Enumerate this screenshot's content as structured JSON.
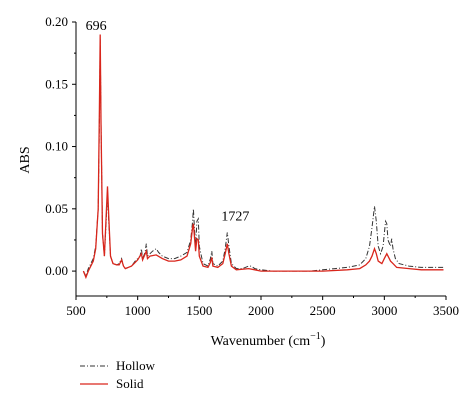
{
  "chart_data": {
    "type": "line",
    "title": "",
    "xlabel": "Wavenumber (cm",
    "xlabel_sup": "−1",
    "xlabel_suffix": ")",
    "ylabel": "ABS",
    "xlim": [
      500,
      3500
    ],
    "ylim": [
      -0.02,
      0.2
    ],
    "x_ticks": [
      500,
      1000,
      1500,
      2000,
      2500,
      3000,
      3500
    ],
    "x_tick_labels": [
      "500",
      "1000",
      "1500",
      "2000",
      "2500",
      "3000",
      "3500"
    ],
    "y_ticks": [
      0.0,
      0.05,
      0.1,
      0.15,
      0.2
    ],
    "y_tick_labels": [
      "0.00",
      "0.05",
      "0.10",
      "0.15",
      "0.20"
    ],
    "grid": false,
    "legend_position": "bottom-left",
    "annotations": [
      {
        "text": "696",
        "x": 696,
        "y": 0.2
      },
      {
        "text": "1727",
        "x": 1727,
        "y": 0.036
      }
    ],
    "series": [
      {
        "name": "Hollow",
        "color": "#333333",
        "dash": "dash-dot",
        "points": [
          [
            560,
            0.0
          ],
          [
            580,
            -0.004
          ],
          [
            600,
            0.002
          ],
          [
            620,
            0.006
          ],
          [
            640,
            0.01
          ],
          [
            660,
            0.02
          ],
          [
            680,
            0.05
          ],
          [
            690,
            0.12
          ],
          [
            696,
            0.186
          ],
          [
            703,
            0.12
          ],
          [
            715,
            0.03
          ],
          [
            730,
            0.012
          ],
          [
            745,
            0.04
          ],
          [
            755,
            0.064
          ],
          [
            765,
            0.04
          ],
          [
            780,
            0.012
          ],
          [
            800,
            0.006
          ],
          [
            830,
            0.005
          ],
          [
            850,
            0.006
          ],
          [
            870,
            0.01
          ],
          [
            885,
            0.004
          ],
          [
            900,
            0.002
          ],
          [
            950,
            0.004
          ],
          [
            980,
            0.008
          ],
          [
            1000,
            0.01
          ],
          [
            1020,
            0.012
          ],
          [
            1030,
            0.018
          ],
          [
            1040,
            0.01
          ],
          [
            1060,
            0.015
          ],
          [
            1070,
            0.022
          ],
          [
            1080,
            0.012
          ],
          [
            1100,
            0.014
          ],
          [
            1120,
            0.016
          ],
          [
            1150,
            0.018
          ],
          [
            1170,
            0.015
          ],
          [
            1200,
            0.012
          ],
          [
            1250,
            0.01
          ],
          [
            1300,
            0.01
          ],
          [
            1350,
            0.012
          ],
          [
            1400,
            0.015
          ],
          [
            1430,
            0.025
          ],
          [
            1445,
            0.04
          ],
          [
            1452,
            0.05
          ],
          [
            1460,
            0.035
          ],
          [
            1470,
            0.02
          ],
          [
            1480,
            0.04
          ],
          [
            1492,
            0.042
          ],
          [
            1500,
            0.02
          ],
          [
            1530,
            0.006
          ],
          [
            1570,
            0.004
          ],
          [
            1590,
            0.01
          ],
          [
            1601,
            0.016
          ],
          [
            1610,
            0.006
          ],
          [
            1650,
            0.004
          ],
          [
            1690,
            0.008
          ],
          [
            1710,
            0.018
          ],
          [
            1727,
            0.031
          ],
          [
            1740,
            0.02
          ],
          [
            1760,
            0.006
          ],
          [
            1800,
            0.002
          ],
          [
            1850,
            0.002
          ],
          [
            1900,
            0.004
          ],
          [
            1920,
            0.004
          ],
          [
            1950,
            0.002
          ],
          [
            2000,
            0.001
          ],
          [
            2100,
            0.0
          ],
          [
            2200,
            0.0
          ],
          [
            2300,
            0.0
          ],
          [
            2400,
            0.0
          ],
          [
            2500,
            0.001
          ],
          [
            2600,
            0.002
          ],
          [
            2700,
            0.003
          ],
          [
            2800,
            0.005
          ],
          [
            2850,
            0.01
          ],
          [
            2880,
            0.02
          ],
          [
            2900,
            0.035
          ],
          [
            2920,
            0.052
          ],
          [
            2935,
            0.04
          ],
          [
            2950,
            0.02
          ],
          [
            2970,
            0.014
          ],
          [
            2990,
            0.02
          ],
          [
            3000,
            0.03
          ],
          [
            3010,
            0.04
          ],
          [
            3020,
            0.038
          ],
          [
            3030,
            0.025
          ],
          [
            3050,
            0.02
          ],
          [
            3060,
            0.026
          ],
          [
            3070,
            0.018
          ],
          [
            3090,
            0.01
          ],
          [
            3120,
            0.006
          ],
          [
            3200,
            0.004
          ],
          [
            3300,
            0.003
          ],
          [
            3400,
            0.003
          ],
          [
            3480,
            0.003
          ]
        ]
      },
      {
        "name": "Solid",
        "color": "#d9261c",
        "dash": "solid",
        "points": [
          [
            560,
            0.0
          ],
          [
            580,
            -0.005
          ],
          [
            600,
            0.0
          ],
          [
            620,
            0.004
          ],
          [
            640,
            0.008
          ],
          [
            660,
            0.018
          ],
          [
            680,
            0.05
          ],
          [
            690,
            0.13
          ],
          [
            696,
            0.19
          ],
          [
            703,
            0.12
          ],
          [
            715,
            0.03
          ],
          [
            730,
            0.012
          ],
          [
            745,
            0.045
          ],
          [
            755,
            0.068
          ],
          [
            765,
            0.045
          ],
          [
            780,
            0.012
          ],
          [
            800,
            0.006
          ],
          [
            830,
            0.005
          ],
          [
            850,
            0.005
          ],
          [
            870,
            0.009
          ],
          [
            885,
            0.004
          ],
          [
            900,
            0.002
          ],
          [
            950,
            0.004
          ],
          [
            980,
            0.007
          ],
          [
            1000,
            0.009
          ],
          [
            1030,
            0.014
          ],
          [
            1040,
            0.009
          ],
          [
            1070,
            0.016
          ],
          [
            1080,
            0.01
          ],
          [
            1100,
            0.012
          ],
          [
            1150,
            0.013
          ],
          [
            1200,
            0.01
          ],
          [
            1250,
            0.008
          ],
          [
            1300,
            0.008
          ],
          [
            1350,
            0.009
          ],
          [
            1400,
            0.012
          ],
          [
            1430,
            0.022
          ],
          [
            1445,
            0.035
          ],
          [
            1452,
            0.038
          ],
          [
            1460,
            0.028
          ],
          [
            1470,
            0.016
          ],
          [
            1480,
            0.026
          ],
          [
            1492,
            0.025
          ],
          [
            1500,
            0.012
          ],
          [
            1530,
            0.004
          ],
          [
            1570,
            0.003
          ],
          [
            1590,
            0.007
          ],
          [
            1601,
            0.011
          ],
          [
            1610,
            0.004
          ],
          [
            1650,
            0.003
          ],
          [
            1690,
            0.006
          ],
          [
            1710,
            0.014
          ],
          [
            1727,
            0.022
          ],
          [
            1740,
            0.014
          ],
          [
            1760,
            0.004
          ],
          [
            1800,
            0.001
          ],
          [
            1900,
            0.002
          ],
          [
            1950,
            0.001
          ],
          [
            2000,
            0.0
          ],
          [
            2200,
            0.0
          ],
          [
            2400,
            0.0
          ],
          [
            2500,
            0.0
          ],
          [
            2700,
            0.001
          ],
          [
            2800,
            0.002
          ],
          [
            2850,
            0.005
          ],
          [
            2880,
            0.008
          ],
          [
            2900,
            0.012
          ],
          [
            2920,
            0.018
          ],
          [
            2935,
            0.014
          ],
          [
            2950,
            0.008
          ],
          [
            2980,
            0.006
          ],
          [
            3000,
            0.01
          ],
          [
            3020,
            0.014
          ],
          [
            3030,
            0.012
          ],
          [
            3050,
            0.008
          ],
          [
            3070,
            0.006
          ],
          [
            3100,
            0.003
          ],
          [
            3200,
            0.002
          ],
          [
            3300,
            0.001
          ],
          [
            3400,
            0.001
          ],
          [
            3480,
            0.001
          ]
        ]
      }
    ]
  }
}
